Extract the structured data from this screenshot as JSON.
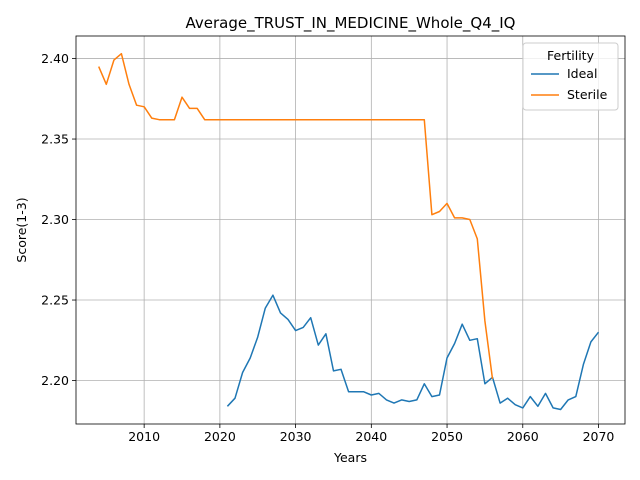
{
  "chart_data": {
    "type": "line",
    "title": "Average_TRUST_IN_MEDICINE_Whole_Q4_IQ",
    "xlabel": "Years",
    "ylabel": "Score(1-3)",
    "xlim": [
      2001,
      2073.5
    ],
    "ylim": [
      2.173,
      2.414
    ],
    "xticks": [
      2010,
      2020,
      2030,
      2040,
      2050,
      2060,
      2070
    ],
    "yticks": [
      2.2,
      2.25,
      2.3,
      2.35,
      2.4
    ],
    "ytick_labels": [
      "2.20",
      "2.25",
      "2.30",
      "2.35",
      "2.40"
    ],
    "grid": true,
    "legend": {
      "title": "Fertility",
      "placement": "top-right"
    },
    "series": [
      {
        "name": "Ideal",
        "color": "#1f77b4",
        "x": [
          2021,
          2022,
          2023,
          2024,
          2025,
          2026,
          2027,
          2028,
          2029,
          2030,
          2031,
          2032,
          2033,
          2034,
          2035,
          2036,
          2037,
          2038,
          2039,
          2040,
          2041,
          2042,
          2043,
          2044,
          2045,
          2046,
          2047,
          2048,
          2049,
          2050,
          2051,
          2052,
          2053,
          2054,
          2055,
          2056,
          2057,
          2058,
          2059,
          2060,
          2061,
          2062,
          2063,
          2064,
          2065,
          2066,
          2067,
          2068,
          2069,
          2070
        ],
        "y": [
          2.184,
          2.189,
          2.205,
          2.214,
          2.227,
          2.245,
          2.253,
          2.242,
          2.238,
          2.231,
          2.233,
          2.239,
          2.222,
          2.229,
          2.206,
          2.207,
          2.193,
          2.193,
          2.193,
          2.191,
          2.192,
          2.188,
          2.186,
          2.188,
          2.187,
          2.188,
          2.198,
          2.19,
          2.191,
          2.214,
          2.223,
          2.235,
          2.225,
          2.226,
          2.198,
          2.202,
          2.186,
          2.189,
          2.185,
          2.183,
          2.19,
          2.184,
          2.192,
          2.183,
          2.182,
          2.188,
          2.19,
          2.21,
          2.224,
          2.23
        ]
      },
      {
        "name": "Sterile",
        "color": "#ff7f0e",
        "x": [
          2004,
          2005,
          2006,
          2007,
          2008,
          2009,
          2010,
          2011,
          2012,
          2013,
          2014,
          2015,
          2016,
          2017,
          2018,
          2019,
          2020,
          2021,
          2022,
          2023,
          2024,
          2025,
          2026,
          2027,
          2028,
          2029,
          2030,
          2031,
          2032,
          2033,
          2034,
          2035,
          2036,
          2037,
          2038,
          2039,
          2040,
          2041,
          2042,
          2043,
          2044,
          2045,
          2046,
          2047,
          2048,
          2049,
          2050,
          2051,
          2052,
          2053,
          2054,
          2055,
          2056
        ],
        "y": [
          2.395,
          2.384,
          2.399,
          2.403,
          2.384,
          2.371,
          2.37,
          2.363,
          2.362,
          2.362,
          2.362,
          2.376,
          2.369,
          2.369,
          2.362,
          2.362,
          2.362,
          2.362,
          2.362,
          2.362,
          2.362,
          2.362,
          2.362,
          2.362,
          2.362,
          2.362,
          2.362,
          2.362,
          2.362,
          2.362,
          2.362,
          2.362,
          2.362,
          2.362,
          2.362,
          2.362,
          2.362,
          2.362,
          2.362,
          2.362,
          2.362,
          2.362,
          2.362,
          2.362,
          2.303,
          2.305,
          2.31,
          2.301,
          2.301,
          2.3,
          2.288,
          2.237,
          2.201
        ]
      }
    ]
  }
}
